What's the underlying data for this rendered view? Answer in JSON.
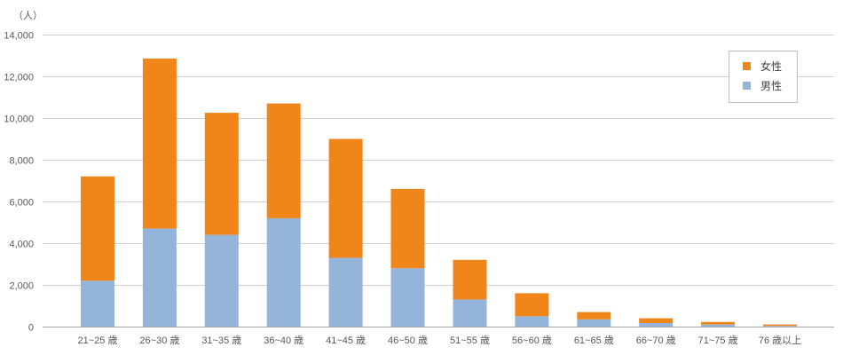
{
  "chart_data": {
    "type": "bar",
    "stacked": true,
    "unit_label": "（人）",
    "categories": [
      "21~25 歳",
      "26~30 歳",
      "31~35 歳",
      "36~40 歳",
      "41~45 歳",
      "46~50 歳",
      "51~55 歳",
      "56~60 歳",
      "61~65 歳",
      "66~70 歳",
      "71~75 歳",
      "76 歳以上"
    ],
    "series": [
      {
        "name": "男性",
        "color": "#95B4DA",
        "values": [
          2200,
          4700,
          4400,
          5200,
          3300,
          2800,
          1300,
          500,
          350,
          170,
          100,
          30
        ]
      },
      {
        "name": "女性",
        "color": "#F0851A",
        "values": [
          5000,
          8150,
          5850,
          5500,
          5700,
          3800,
          1900,
          1100,
          350,
          230,
          120,
          70
        ]
      }
    ],
    "ylim": [
      0,
      14000
    ],
    "yticks": [
      0,
      2000,
      4000,
      6000,
      8000,
      10000,
      12000,
      14000
    ],
    "grid": true,
    "legend_position": "top-right",
    "legend_order": "reverse-stack"
  }
}
